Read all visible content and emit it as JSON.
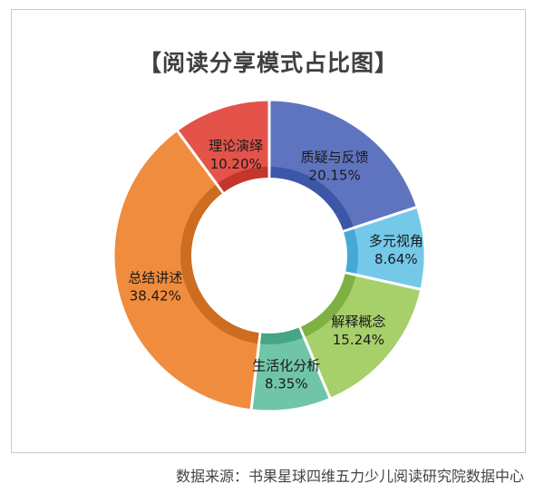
{
  "chart_data": {
    "type": "pie",
    "title": "【阅读分享模式占比图】",
    "categories": [
      "质疑与反馈",
      "多元视角",
      "解释概念",
      "生活化分析",
      "总结讲述",
      "理论演绎"
    ],
    "values": [
      20.15,
      8.64,
      15.24,
      8.35,
      38.42,
      10.2
    ],
    "value_labels": [
      "20.15%",
      "8.64%",
      "15.24%",
      "8.35%",
      "38.42%",
      "10.20%"
    ],
    "colors": [
      "#5f74bf",
      "#74c9e9",
      "#a7cf6a",
      "#70c5a8",
      "#f08c3e",
      "#e3534a"
    ],
    "shade_colors": [
      "#3d57a8",
      "#45a9d3",
      "#7fb044",
      "#45a585",
      "#cc6d22",
      "#c6352c"
    ],
    "donut": true,
    "legend": "none"
  },
  "footer": {
    "source": "数据来源：书果星球四维五力少儿阅读研究院数据中心"
  }
}
